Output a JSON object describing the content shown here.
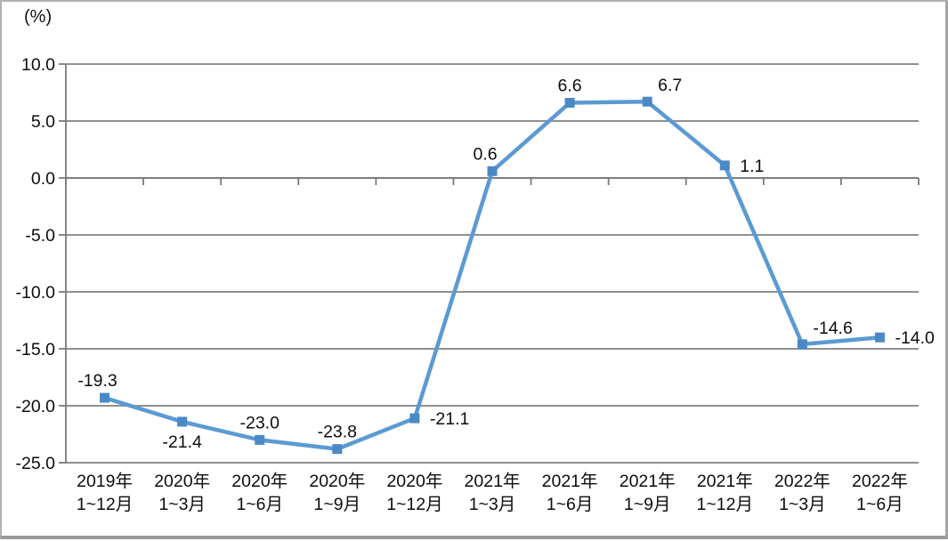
{
  "chart_data": {
    "type": "line",
    "title": "",
    "unit_label": "(%)",
    "legend_position": "none",
    "grid": true,
    "colors": {
      "line": "#5b9ad2",
      "marker": "#4b89c6",
      "grid": "#808080",
      "axis": "#7a7a7a",
      "text": "#0d0d0d",
      "background": "#ffffff"
    },
    "y_axis": {
      "min": -25,
      "max": 10,
      "ticks": [
        10,
        5,
        0,
        -5,
        -10,
        -15,
        -20,
        -25
      ],
      "tick_labels": [
        "10.0",
        "5.0",
        "0.0",
        "-5.0",
        "-10.0",
        "-15.0",
        "-20.0",
        "-25.0"
      ]
    },
    "categories": [
      [
        "2019年",
        "1~12月"
      ],
      [
        "2020年",
        "1~3月"
      ],
      [
        "2020年",
        "1~6月"
      ],
      [
        "2020年",
        "1~9月"
      ],
      [
        "2020年",
        "1~12月"
      ],
      [
        "2021年",
        "1~3月"
      ],
      [
        "2021年",
        "1~6月"
      ],
      [
        "2021年",
        "1~9月"
      ],
      [
        "2021年",
        "1~12月"
      ],
      [
        "2022年",
        "1~3月"
      ],
      [
        "2022年",
        "1~6月"
      ]
    ],
    "points": [
      {
        "label": "-19.3",
        "value": -19.3,
        "label_position": "above-left"
      },
      {
        "label": "-21.4",
        "value": -21.4,
        "label_position": "below"
      },
      {
        "label": "-23.0",
        "value": -23.0,
        "label_position": "above"
      },
      {
        "label": "-23.8",
        "value": -23.8,
        "label_position": "above"
      },
      {
        "label": "-21.1",
        "value": -21.1,
        "label_position": "right"
      },
      {
        "label": "0.6",
        "value": 0.6,
        "label_position": "above-left"
      },
      {
        "label": "6.6",
        "value": 6.6,
        "label_position": "above"
      },
      {
        "label": "6.7",
        "value": 6.7,
        "label_position": "above-right"
      },
      {
        "label": "1.1",
        "value": 1.1,
        "label_position": "right"
      },
      {
        "label": "-14.6",
        "value": -14.6,
        "label_position": "above-right"
      },
      {
        "label": "-14.0",
        "value": -14.0,
        "label_position": "right"
      }
    ]
  }
}
